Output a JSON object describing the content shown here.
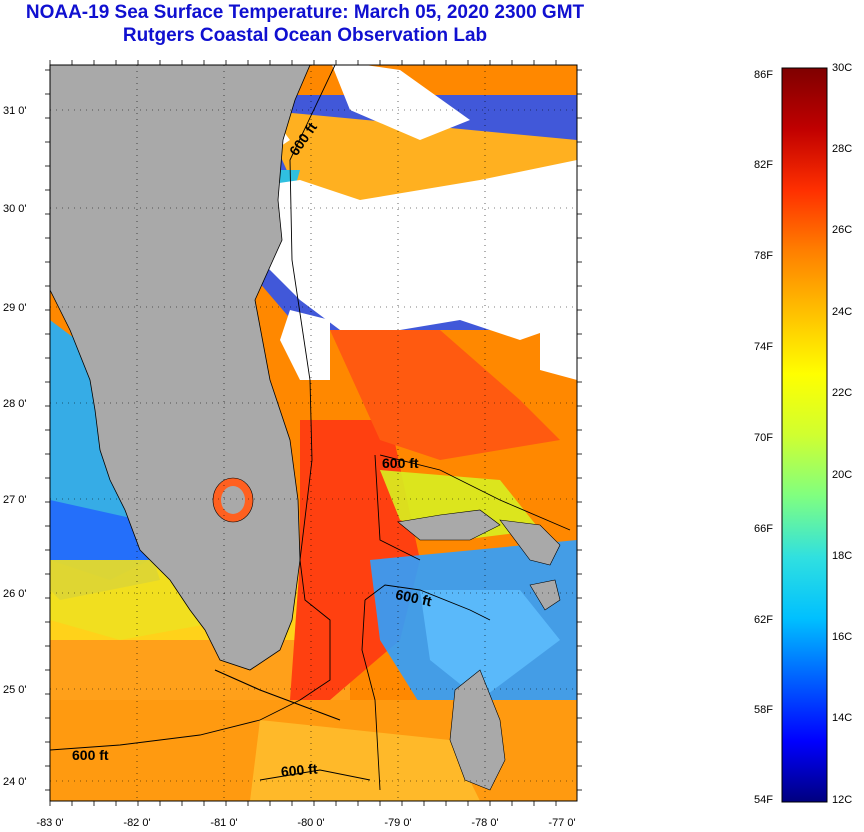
{
  "header": {
    "title": "NOAA-19 Sea Surface Temperature:  March 05, 2020 2300 GMT",
    "subtitle": "Rutgers Coastal Ocean Observation Lab"
  },
  "map": {
    "region": "Florida peninsula and northern Bahamas",
    "lon_labels": [
      "-83 0'",
      "-82 0'",
      "-81 0'",
      "-80 0'",
      "-79 0'",
      "-78 0'",
      "-77 0'"
    ],
    "lat_labels": [
      "31 0'",
      "30 0'",
      "29 0'",
      "28 0'",
      "27 0'",
      "26 0'",
      "25 0'",
      "24 0'"
    ],
    "contour_labels": [
      "600 ft",
      "600 ft",
      "600 ft",
      "600 ft",
      "600 ft"
    ],
    "colors": {
      "land": "#a9a9a9",
      "clouds": "#ffffff",
      "coast": "#000000"
    }
  },
  "colorbar": {
    "fahrenheit_labels": [
      "86F",
      "82F",
      "78F",
      "74F",
      "70F",
      "66F",
      "62F",
      "58F",
      "54F"
    ],
    "celsius_labels": [
      "30C",
      "28C",
      "26C",
      "24C",
      "22C",
      "20C",
      "18C",
      "16C",
      "14C",
      "12C"
    ],
    "range_c": [
      12,
      30
    ],
    "gradient_stops": [
      "#00007f",
      "#0000ff",
      "#0060ff",
      "#00c0ff",
      "#30e0e0",
      "#80ff80",
      "#d0ff30",
      "#ffff00",
      "#ffc000",
      "#ff8000",
      "#ff3000",
      "#c00000",
      "#7f0000"
    ]
  }
}
